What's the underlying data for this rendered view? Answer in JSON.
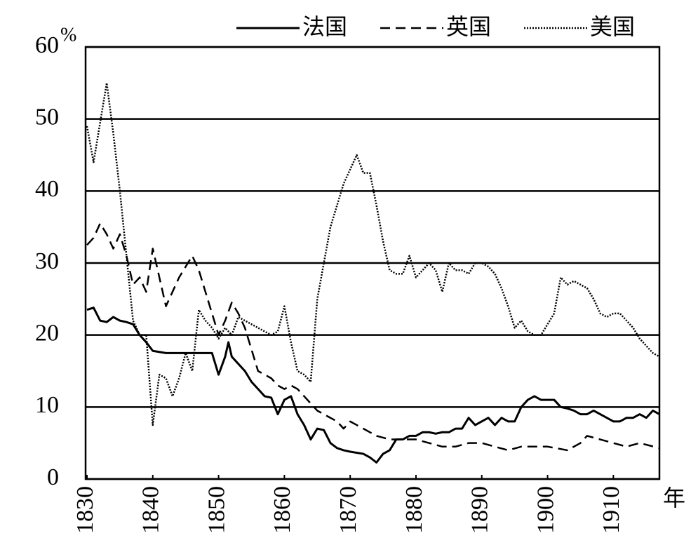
{
  "chart_data": {
    "type": "line",
    "y_unit": "%",
    "x_label": "年",
    "xlim": [
      1830,
      1917
    ],
    "ylim": [
      0,
      60
    ],
    "xticks": [
      1830,
      1840,
      1850,
      1860,
      1870,
      1880,
      1890,
      1900,
      1910
    ],
    "yticks": [
      0,
      10,
      20,
      30,
      40,
      50,
      60
    ],
    "grid": true,
    "legend": "top-right",
    "series": [
      {
        "name": "法国",
        "color": "#000000",
        "style": "solid",
        "x": [
          1830,
          1831,
          1832,
          1833,
          1834,
          1835,
          1836,
          1837,
          1838,
          1839,
          1840,
          1842,
          1845,
          1849,
          1850,
          1851,
          1851.5,
          1852,
          1853,
          1854,
          1855,
          1856,
          1857,
          1858,
          1859,
          1860,
          1861,
          1862,
          1863,
          1864,
          1865,
          1866,
          1867,
          1868,
          1869,
          1870,
          1872,
          1873,
          1874,
          1875,
          1876,
          1877,
          1878,
          1879,
          1880,
          1881,
          1882,
          1883,
          1884,
          1885,
          1886,
          1887,
          1888,
          1889,
          1890,
          1891,
          1892,
          1893,
          1894,
          1895,
          1896,
          1897,
          1898,
          1899,
          1900,
          1901,
          1902,
          1903,
          1904,
          1905,
          1906,
          1907,
          1908,
          1909,
          1910,
          1911,
          1912,
          1913,
          1914,
          1915,
          1916,
          1917
        ],
        "values": [
          23.5,
          23.8,
          22,
          21.8,
          22.5,
          22,
          21.8,
          21.5,
          20,
          19,
          17.8,
          17.5,
          17.5,
          17.5,
          14.5,
          17,
          19,
          17,
          16,
          15,
          13.5,
          12.5,
          11.5,
          11.3,
          9,
          11,
          11.5,
          9,
          7.5,
          5.5,
          7,
          6.8,
          5,
          4.3,
          4,
          3.8,
          3.5,
          3,
          2.3,
          3.5,
          4,
          5.5,
          5.5,
          6,
          6,
          6.5,
          6.5,
          6.3,
          6.5,
          6.5,
          7,
          7,
          8.5,
          7.5,
          8,
          8.5,
          7.5,
          8.5,
          8,
          8,
          10,
          11,
          11.5,
          11,
          11,
          11,
          10,
          9.8,
          9.5,
          9,
          9,
          9.5,
          9,
          8.5,
          8,
          8,
          8.5,
          8.5,
          9,
          8.5,
          9.5,
          9
        ]
      },
      {
        "name": "英国",
        "color": "#000000",
        "style": "dashed",
        "x": [
          1830,
          1831,
          1832,
          1833,
          1834,
          1835,
          1836,
          1837,
          1838,
          1839,
          1840,
          1841,
          1842,
          1843,
          1844,
          1845,
          1846,
          1847,
          1848,
          1849,
          1850,
          1851,
          1852,
          1853,
          1854,
          1855,
          1856,
          1857,
          1858,
          1859,
          1860,
          1861,
          1862,
          1863,
          1864,
          1865,
          1866,
          1867,
          1868,
          1869,
          1870,
          1872,
          1874,
          1876,
          1878,
          1880,
          1882,
          1884,
          1886,
          1888,
          1890,
          1892,
          1894,
          1896,
          1898,
          1900,
          1903,
          1905,
          1906,
          1908,
          1910,
          1912,
          1914,
          1917
        ],
        "values": [
          32.5,
          33.5,
          35.5,
          34,
          32,
          34,
          31,
          27,
          28,
          26,
          32,
          28,
          24,
          26,
          28,
          29.5,
          31,
          29,
          26,
          23,
          20,
          22,
          24.5,
          23,
          21,
          18,
          15,
          14.5,
          14,
          13,
          12.5,
          13,
          12.5,
          11.5,
          10.5,
          9.5,
          9,
          8.5,
          8,
          7,
          8,
          7,
          6,
          5.5,
          5.5,
          5.5,
          5,
          4.5,
          4.5,
          5,
          5,
          4.5,
          4,
          4.5,
          4.5,
          4.5,
          4,
          5,
          6,
          5.5,
          5,
          4.5,
          5,
          4.3
        ]
      },
      {
        "name": "美国",
        "color": "#000000",
        "style": "dotted",
        "x": [
          1830,
          1831,
          1832,
          1833,
          1834,
          1835,
          1836,
          1837,
          1838,
          1839,
          1840,
          1841,
          1842,
          1843,
          1844,
          1845,
          1846,
          1847,
          1848,
          1849,
          1850,
          1851,
          1852,
          1853,
          1854,
          1855,
          1856,
          1857,
          1858,
          1859,
          1860,
          1861,
          1862,
          1863,
          1864,
          1865,
          1866,
          1867,
          1868,
          1869,
          1870,
          1871,
          1872,
          1873,
          1874,
          1875,
          1876,
          1877,
          1878,
          1879,
          1880,
          1881,
          1882,
          1883,
          1884,
          1885,
          1886,
          1887,
          1888,
          1889,
          1890,
          1891,
          1892,
          1893,
          1894,
          1895,
          1896,
          1897,
          1898,
          1899,
          1900,
          1901,
          1902,
          1903,
          1904,
          1905,
          1906,
          1907,
          1908,
          1909,
          1910,
          1911,
          1912,
          1913,
          1914,
          1915,
          1916,
          1917
        ],
        "values": [
          49,
          44,
          49.5,
          55,
          48,
          40,
          31,
          22,
          20,
          20,
          7.5,
          14.5,
          14,
          11.5,
          14,
          17.5,
          15,
          23.5,
          22,
          21,
          19.5,
          21,
          20,
          22.5,
          22,
          21.5,
          21,
          20.5,
          20,
          20.5,
          24,
          19,
          15,
          14.5,
          13.5,
          25,
          30,
          35,
          38,
          41,
          43,
          45,
          42.5,
          42.5,
          38,
          33,
          29,
          28.5,
          28.5,
          31,
          28,
          29,
          30,
          29,
          26,
          30,
          29,
          29,
          28.5,
          30,
          30,
          29.5,
          28.5,
          26.5,
          24,
          21,
          22,
          20.5,
          20,
          20,
          21.5,
          23,
          28,
          27,
          27.5,
          27,
          26.5,
          25,
          23,
          22.5,
          23,
          23,
          22,
          21,
          19.5,
          18.5,
          17.5,
          17
        ]
      }
    ]
  }
}
